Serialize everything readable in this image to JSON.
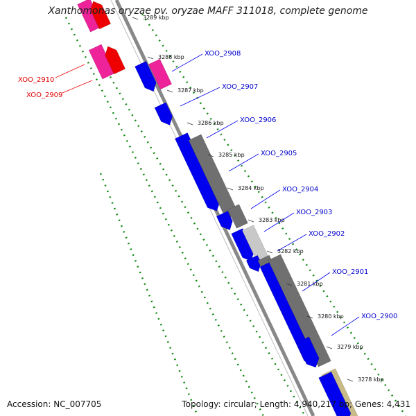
{
  "title": "Xanthomonas oryzae pv. oryzae MAFF 311018, complete genome",
  "footer": {
    "accession": "Accession: NC_007705",
    "summary": "Topology: circular; Length: 4,940,217 bp; Genes: 4,431"
  },
  "colors": {
    "forward_gene": "#0000ee",
    "forward_label": "#0000cc",
    "reverse_gene": "#ee0000",
    "reverse_label": "#dd0000",
    "pink_feature": "#ee2299",
    "dark_feature": "#707070",
    "light_feature": "#c8c8c8",
    "olive_feature": "#c8bb88",
    "ruler_dots": "#118811",
    "backbone": "#888888"
  },
  "ticks": [
    "3289 kbp",
    "3288 kbp",
    "3287 kbp",
    "3286 kbp",
    "3285 kbp",
    "3284 kbp",
    "3283 kbp",
    "3282 kbp",
    "3281 kbp",
    "3280 kbp",
    "3279 kbp",
    "3278 kbp"
  ],
  "genes_forward": [
    "XOO_2908",
    "XOO_2907",
    "XOO_2906",
    "XOO_2905",
    "XOO_2904",
    "XOO_2903",
    "XOO_2902",
    "XOO_2901",
    "XOO_2900"
  ],
  "genes_reverse": [
    "XOO_2910",
    "XOO_2909"
  ]
}
